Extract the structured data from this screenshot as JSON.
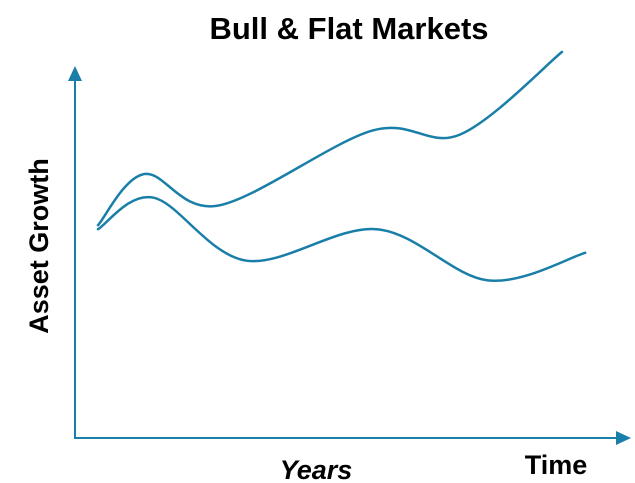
{
  "chart_data": {
    "type": "line",
    "title": "Bull & Flat Markets",
    "xlabel": "Years",
    "x_end_label": "Time",
    "ylabel": "Asset Growth",
    "xlim": [
      0,
      10
    ],
    "ylim": [
      0,
      10
    ],
    "grid": false,
    "legend": "none",
    "line_color": "#1a7fa8",
    "axis_color": "#1a7fa8",
    "series": [
      {
        "x": [
          0,
          1.0,
          2.6,
          5.9,
          7.8,
          10
        ],
        "y": [
          5.4,
          6.7,
          5.9,
          7.8,
          7.7,
          9.8
        ]
      },
      {
        "x": [
          0,
          1.2,
          3.2,
          6.0,
          8.4,
          10.5
        ],
        "y": [
          5.3,
          6.1,
          4.5,
          5.3,
          4.0,
          4.7
        ]
      }
    ]
  }
}
